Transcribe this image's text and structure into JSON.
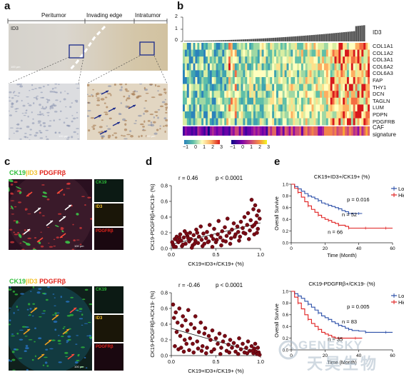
{
  "panels": {
    "a": {
      "letter": "a",
      "regions": [
        "Peritumor",
        "Invading edge",
        "Intratumor"
      ],
      "stain": "ID3",
      "scale_bars": [
        "100 μm",
        "100 μm",
        "100 μm"
      ]
    },
    "b": {
      "letter": "b",
      "top_label": "ID3",
      "top_ticks": [
        "2",
        "1",
        "0"
      ],
      "genes": [
        "COL1A1",
        "COL1A2",
        "COL3A1",
        "COL6A2",
        "COL6A3",
        "FAP",
        "THY1",
        "DCN",
        "TAGLN",
        "LUM",
        "PDPN",
        "PDGFRB"
      ],
      "caf_label_1": "CAF",
      "caf_label_2": "signature",
      "scale1": [
        "−1",
        "0",
        "1",
        "2",
        "3"
      ],
      "scale2": [
        "−1",
        "0",
        "1",
        "2",
        "3"
      ]
    },
    "c": {
      "letter": "c",
      "legend_top": {
        "ck19": "CK19",
        "id3": "ID3",
        "pdgfrb": "PDGFRβ"
      },
      "side_top": [
        "CK19",
        "ID3",
        "PDGFRβ"
      ],
      "legend_bottom": {
        "ck19": "CK19",
        "id3": "ID3",
        "pdgfrb": "PDGFRβ"
      },
      "side_bottom": [
        "CK19",
        "ID3",
        "PDGFRβ"
      ],
      "scale_bar": "100 μm"
    },
    "d": {
      "letter": "d",
      "top": {
        "r": "r = 0.46",
        "p": "p < 0.0001",
        "ylabel": "CK19-PDGFRβ+/CK19- (%)",
        "xlabel": "CK19+ID3+/CK19+ (%)"
      },
      "bottom": {
        "r": "r = -0.46",
        "p": "p < 0.0001",
        "ylabel": "CK19-PDGFRβ+/CK19- (%)",
        "xlabel": "CK19+ID3+/CK19+ (%)"
      }
    },
    "e": {
      "letter": "e",
      "top": {
        "title": "CK19+ID3+/CK19+ (%)",
        "p": "p = 0.016",
        "n_low": "n = 52",
        "n_high": "n = 66",
        "ylabel": "Overall Survive",
        "xlabel": "Time (Month)",
        "legend": [
          "Low",
          "High"
        ]
      },
      "bottom": {
        "title": "CK19-PDGFRβ+/CK19- (%)",
        "p": "p = 0.005",
        "n_low": "n = 83",
        "n_high": "n = 35",
        "ylabel": "Overall Survive",
        "xlabel": "Time (Month)",
        "legend": [
          "Low",
          "High"
        ]
      }
    }
  },
  "watermark": {
    "line1": "GENESKY",
    "line2": "天昊生物"
  },
  "colors": {
    "low": "#2b4fa8",
    "high": "#e02020",
    "dot": "#7a0a14",
    "ck19": "#2fbf3a",
    "id3": "#f2c12e",
    "pdgfrb": "#e2231a"
  },
  "chart_data": [
    {
      "type": "scatter",
      "title": "",
      "r": "r = 0.46",
      "p": "p < 0.0001",
      "xlabel": "CK19+ID3+/CK19+ (%)",
      "ylabel": "CK19-PDGFRβ+/CK19- (%)",
      "xlim": [
        0,
        1.0
      ],
      "ylim": [
        0,
        0.8
      ],
      "xticks": [
        "0.0",
        "0.5",
        "1.0"
      ],
      "yticks": [
        "0.0",
        "0.2",
        "0.4",
        "0.6",
        "0.8"
      ],
      "x": [
        0.02,
        0.04,
        0.05,
        0.06,
        0.08,
        0.1,
        0.11,
        0.12,
        0.14,
        0.15,
        0.16,
        0.18,
        0.2,
        0.21,
        0.22,
        0.24,
        0.25,
        0.27,
        0.28,
        0.3,
        0.31,
        0.33,
        0.34,
        0.36,
        0.37,
        0.39,
        0.4,
        0.42,
        0.43,
        0.45,
        0.47,
        0.48,
        0.5,
        0.52,
        0.53,
        0.55,
        0.57,
        0.58,
        0.6,
        0.62,
        0.63,
        0.65,
        0.67,
        0.68,
        0.7,
        0.72,
        0.74,
        0.75,
        0.77,
        0.78,
        0.8,
        0.82,
        0.83,
        0.85,
        0.86,
        0.88,
        0.89,
        0.9,
        0.91,
        0.92,
        0.93,
        0.94,
        0.95,
        0.96,
        0.97,
        0.98,
        0.03,
        0.07,
        0.13,
        0.19,
        0.23,
        0.29,
        0.35,
        0.41,
        0.46,
        0.51,
        0.56,
        0.61,
        0.66,
        0.71,
        0.76,
        0.81,
        0.87,
        0.93,
        0.96,
        0.99,
        0.01,
        0.09,
        0.17,
        0.26
      ],
      "y": [
        0.05,
        0.12,
        0.02,
        0.15,
        0.08,
        0.18,
        0.1,
        0.03,
        0.14,
        0.22,
        0.06,
        0.16,
        0.09,
        0.2,
        0.12,
        0.04,
        0.17,
        0.1,
        0.24,
        0.07,
        0.15,
        0.28,
        0.11,
        0.19,
        0.06,
        0.13,
        0.21,
        0.09,
        0.3,
        0.16,
        0.12,
        0.25,
        0.08,
        0.18,
        0.35,
        0.14,
        0.22,
        0.1,
        0.27,
        0.16,
        0.38,
        0.2,
        0.13,
        0.24,
        0.32,
        0.18,
        0.28,
        0.21,
        0.15,
        0.34,
        0.26,
        0.4,
        0.19,
        0.3,
        0.45,
        0.23,
        0.36,
        0.62,
        0.28,
        0.5,
        0.18,
        0.55,
        0.33,
        0.42,
        0.25,
        0.48,
        0.02,
        0.1,
        0.05,
        0.13,
        0.01,
        0.2,
        0.03,
        0.08,
        0.02,
        0.11,
        0.04,
        0.09,
        0.06,
        0.15,
        0.1,
        0.2,
        0.12,
        0.3,
        0.2,
        0.38,
        0.08,
        0.14,
        0.19,
        0.06
      ]
    },
    {
      "type": "scatter",
      "title": "",
      "r": "r = -0.46",
      "p": "p < 0.0001",
      "xlabel": "CK19+ID3+/CK19+ (%)",
      "ylabel": "CK19-PDGFRβ+/CK19- (%)",
      "xlim": [
        0,
        1.0
      ],
      "ylim": [
        0,
        0.8
      ],
      "xticks": [
        "0.0",
        "0.5",
        "1.0"
      ],
      "yticks": [
        "0.0",
        "0.2",
        "0.4",
        "0.6",
        "0.8"
      ],
      "x": [
        0.02,
        0.03,
        0.05,
        0.06,
        0.07,
        0.09,
        0.1,
        0.12,
        0.13,
        0.15,
        0.16,
        0.18,
        0.19,
        0.21,
        0.22,
        0.24,
        0.26,
        0.27,
        0.29,
        0.31,
        0.33,
        0.35,
        0.37,
        0.38,
        0.4,
        0.42,
        0.44,
        0.46,
        0.48,
        0.5,
        0.52,
        0.54,
        0.56,
        0.58,
        0.6,
        0.62,
        0.64,
        0.66,
        0.68,
        0.7,
        0.72,
        0.74,
        0.76,
        0.78,
        0.8,
        0.82,
        0.84,
        0.86,
        0.88,
        0.9,
        0.92,
        0.93,
        0.94,
        0.95,
        0.96,
        0.97,
        0.98,
        0.99,
        0.04,
        0.08,
        0.11,
        0.14,
        0.17,
        0.2,
        0.25,
        0.3,
        0.34,
        0.39,
        0.45,
        0.55,
        0.65,
        0.75,
        0.85,
        0.91,
        0.97
      ],
      "y": [
        0.65,
        0.48,
        0.55,
        0.3,
        0.42,
        0.6,
        0.25,
        0.38,
        0.5,
        0.2,
        0.45,
        0.32,
        0.58,
        0.22,
        0.4,
        0.15,
        0.35,
        0.5,
        0.18,
        0.3,
        0.42,
        0.12,
        0.28,
        0.35,
        0.1,
        0.25,
        0.2,
        0.32,
        0.08,
        0.22,
        0.15,
        0.28,
        0.1,
        0.18,
        0.25,
        0.06,
        0.14,
        0.2,
        0.1,
        0.16,
        0.05,
        0.12,
        0.22,
        0.08,
        0.15,
        0.04,
        0.1,
        0.18,
        0.06,
        0.12,
        0.03,
        0.09,
        0.15,
        0.05,
        0.02,
        0.1,
        0.04,
        0.01,
        0.12,
        0.08,
        0.1,
        0.05,
        0.15,
        0.07,
        0.04,
        0.09,
        0.06,
        0.03,
        0.05,
        0.02,
        0.04,
        0.02,
        0.03,
        0.06,
        0.02
      ]
    },
    {
      "type": "line",
      "title": "CK19+ID3+/CK19+ (%)",
      "xlabel": "Time (Month)",
      "ylabel": "Overall Survive",
      "xlim": [
        0,
        60
      ],
      "ylim": [
        0,
        1.0
      ],
      "xticks": [
        "0",
        "20",
        "40",
        "60"
      ],
      "yticks": [
        "0.0",
        "0.2",
        "0.4",
        "0.6",
        "0.8",
        "1.0"
      ],
      "series": [
        {
          "name": "Low",
          "x": [
            0,
            2,
            4,
            6,
            8,
            10,
            12,
            14,
            16,
            18,
            20,
            22,
            24,
            26,
            28,
            30,
            32,
            34,
            36,
            38,
            40,
            42
          ],
          "y": [
            1.0,
            0.96,
            0.92,
            0.88,
            0.84,
            0.8,
            0.78,
            0.75,
            0.72,
            0.68,
            0.66,
            0.64,
            0.62,
            0.6,
            0.58,
            0.55,
            0.53,
            0.5,
            0.5,
            0.5,
            0.5,
            0.5
          ]
        },
        {
          "name": "High",
          "x": [
            0,
            2,
            4,
            6,
            8,
            10,
            12,
            14,
            16,
            18,
            20,
            22,
            24,
            26,
            28,
            30,
            32,
            34,
            36,
            40,
            44,
            48,
            52,
            56,
            60
          ],
          "y": [
            1.0,
            0.93,
            0.86,
            0.78,
            0.7,
            0.63,
            0.57,
            0.52,
            0.47,
            0.43,
            0.4,
            0.38,
            0.35,
            0.33,
            0.3,
            0.3,
            0.28,
            0.25,
            0.25,
            0.25,
            0.25,
            0.25,
            0.25,
            0.25,
            0.25
          ]
        }
      ]
    },
    {
      "type": "line",
      "title": "CK19-PDGFRβ+/CK19- (%)",
      "xlabel": "Time (Month)",
      "ylabel": "Overall Survive",
      "xlim": [
        0,
        60
      ],
      "ylim": [
        0,
        1.0
      ],
      "xticks": [
        "0",
        "20",
        "40",
        "60"
      ],
      "yticks": [
        "0.0",
        "0.2",
        "0.4",
        "0.6",
        "0.8",
        "1.0"
      ],
      "series": [
        {
          "name": "Low",
          "x": [
            0,
            2,
            4,
            6,
            8,
            10,
            12,
            14,
            16,
            18,
            20,
            22,
            24,
            26,
            28,
            30,
            32,
            34,
            36,
            40,
            44,
            48,
            52,
            56,
            60
          ],
          "y": [
            1.0,
            0.96,
            0.92,
            0.88,
            0.83,
            0.78,
            0.73,
            0.68,
            0.63,
            0.58,
            0.55,
            0.52,
            0.48,
            0.45,
            0.42,
            0.4,
            0.37,
            0.35,
            0.33,
            0.32,
            0.3,
            0.3,
            0.3,
            0.3,
            0.3
          ]
        },
        {
          "name": "High",
          "x": [
            0,
            2,
            4,
            6,
            8,
            10,
            12,
            14,
            16,
            18,
            20,
            22,
            24,
            26,
            28,
            30,
            34,
            38,
            42
          ],
          "y": [
            1.0,
            0.9,
            0.8,
            0.7,
            0.6,
            0.52,
            0.45,
            0.4,
            0.35,
            0.3,
            0.27,
            0.25,
            0.22,
            0.2,
            0.2,
            0.2,
            0.2,
            0.2,
            0.2
          ]
        }
      ]
    }
  ]
}
